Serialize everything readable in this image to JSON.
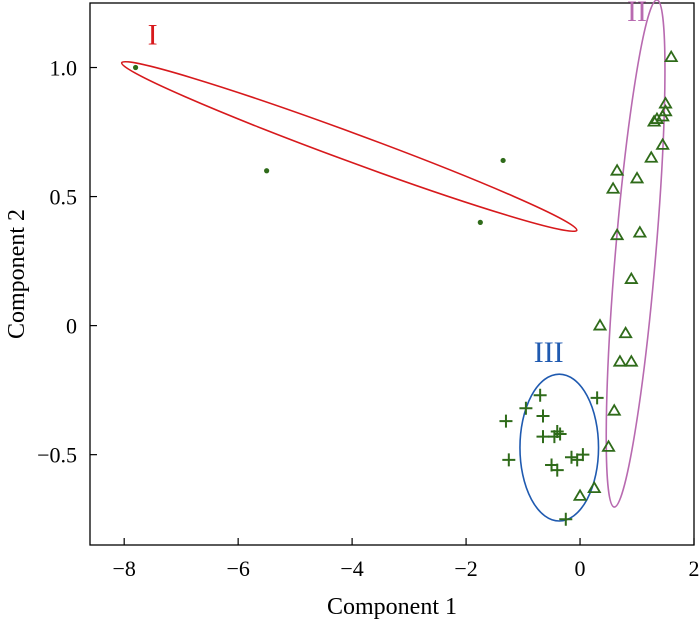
{
  "chart_data": {
    "type": "scatter",
    "title": "",
    "xlabel": "Component 1",
    "ylabel": "Component 2",
    "xlim": [
      -8.6,
      2.0
    ],
    "ylim": [
      -0.85,
      1.25
    ],
    "xticks": [
      {
        "value": -8,
        "label": "−8"
      },
      {
        "value": -6,
        "label": "−6"
      },
      {
        "value": -4,
        "label": "−4"
      },
      {
        "value": -2,
        "label": "−2"
      },
      {
        "value": 0,
        "label": "0"
      },
      {
        "value": 2,
        "label": "2"
      }
    ],
    "yticks": [
      {
        "value": -0.5,
        "label": "−0.5"
      },
      {
        "value": 0,
        "label": "0"
      },
      {
        "value": 0.5,
        "label": "0.5"
      },
      {
        "value": 1.0,
        "label": "1.0"
      }
    ],
    "grid": false,
    "marker_color": "#2f6b1a",
    "series": [
      {
        "group": "I",
        "marker": "dot",
        "points": [
          [
            -7.8,
            1.0
          ],
          [
            -5.5,
            0.6
          ],
          [
            -1.35,
            0.64
          ],
          [
            -1.75,
            0.4
          ]
        ]
      },
      {
        "group": "II",
        "marker": "triangle",
        "points": [
          [
            1.6,
            1.04
          ],
          [
            1.5,
            0.86
          ],
          [
            1.5,
            0.83
          ],
          [
            1.45,
            0.81
          ],
          [
            1.35,
            0.8
          ],
          [
            1.3,
            0.79
          ],
          [
            1.45,
            0.7
          ],
          [
            1.25,
            0.65
          ],
          [
            0.65,
            0.6
          ],
          [
            1.0,
            0.57
          ],
          [
            0.58,
            0.53
          ],
          [
            0.65,
            0.35
          ],
          [
            1.05,
            0.36
          ],
          [
            0.9,
            0.18
          ],
          [
            0.35,
            0.0
          ],
          [
            0.8,
            -0.03
          ],
          [
            0.7,
            -0.14
          ],
          [
            0.9,
            -0.14
          ],
          [
            0.6,
            -0.33
          ],
          [
            0.5,
            -0.47
          ],
          [
            0.25,
            -0.63
          ],
          [
            0.0,
            -0.66
          ]
        ]
      },
      {
        "group": "III",
        "marker": "plus",
        "points": [
          [
            -1.3,
            -0.37
          ],
          [
            -1.25,
            -0.52
          ],
          [
            -0.95,
            -0.32
          ],
          [
            -0.7,
            -0.27
          ],
          [
            -0.65,
            -0.35
          ],
          [
            -0.65,
            -0.43
          ],
          [
            -0.45,
            -0.43
          ],
          [
            -0.35,
            -0.42
          ],
          [
            -0.4,
            -0.41
          ],
          [
            -0.5,
            -0.54
          ],
          [
            -0.4,
            -0.56
          ],
          [
            -0.15,
            -0.51
          ],
          [
            -0.05,
            -0.52
          ],
          [
            0.05,
            -0.5
          ],
          [
            0.3,
            -0.28
          ],
          [
            -0.25,
            -0.75
          ]
        ]
      }
    ],
    "ellipses": [
      {
        "label": "I",
        "color": "#d7191c",
        "cx": -4.05,
        "cy": 0.694,
        "semi_x": 3.993,
        "semi_y": 0.0585,
        "slope": -0.0813,
        "label_at": [
          -7.5,
          1.09
        ]
      },
      {
        "label": "II",
        "color": "#b86ab0",
        "cx": 0.975,
        "cy": 0.2795,
        "semi_x": 0.3555,
        "semi_y": 0.9825,
        "slope": 2.617,
        "label_at": [
          1.0,
          1.18
        ]
      },
      {
        "label": "III",
        "color": "#1f5ab0",
        "cx": -0.365,
        "cy": -0.4725,
        "semi_x": 0.6895,
        "semi_y": 0.2845,
        "slope": 0,
        "label_at": [
          -0.55,
          -0.14
        ]
      }
    ]
  }
}
